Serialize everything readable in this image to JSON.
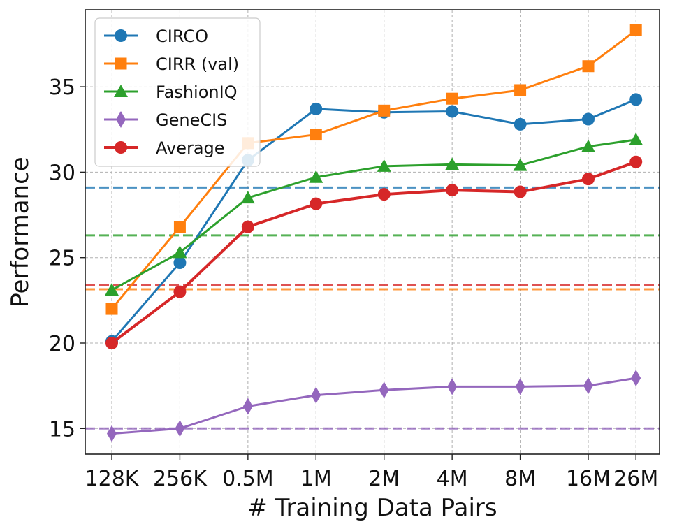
{
  "chart_data": {
    "type": "line",
    "title": "",
    "xlabel": "# Training Data Pairs",
    "ylabel": "Performance",
    "categories": [
      "128K",
      "256K",
      "0.5M",
      "1M",
      "2M",
      "4M",
      "8M",
      "16M",
      "26M"
    ],
    "x_positions": [
      0,
      1,
      2,
      3,
      4,
      5,
      6,
      7,
      7.7
    ],
    "ylim": [
      13.5,
      39.5
    ],
    "yticks": [
      15,
      20,
      25,
      30,
      35
    ],
    "grid": true,
    "legend_position": "top-left",
    "series": [
      {
        "name": "CIRCO",
        "color": "#1f77b4",
        "marker": "circle",
        "values": [
          20.1,
          24.7,
          30.7,
          33.7,
          33.5,
          33.55,
          32.8,
          33.1,
          34.25
        ]
      },
      {
        "name": "CIRR (val)",
        "color": "#ff7f0e",
        "marker": "square",
        "values": [
          22.0,
          26.8,
          31.7,
          32.2,
          33.6,
          34.3,
          34.8,
          36.2,
          38.3
        ]
      },
      {
        "name": "FashionIQ",
        "color": "#2ca02c",
        "marker": "triangle",
        "values": [
          23.1,
          25.3,
          28.5,
          29.7,
          30.35,
          30.45,
          30.4,
          31.5,
          31.9
        ]
      },
      {
        "name": "GeneCIS",
        "color": "#9467bd",
        "marker": "diamond",
        "values": [
          14.7,
          15.0,
          16.3,
          16.95,
          17.25,
          17.45,
          17.45,
          17.5,
          17.95
        ]
      },
      {
        "name": "Average",
        "color": "#d62728",
        "marker": "circle",
        "values": [
          20.0,
          23.0,
          26.8,
          28.15,
          28.7,
          28.95,
          28.85,
          29.6,
          30.6
        ]
      }
    ],
    "baselines": [
      {
        "series": "CIRCO",
        "color": "#1f77b4",
        "value": 29.1
      },
      {
        "series": "FashionIQ",
        "color": "#2ca02c",
        "value": 26.3
      },
      {
        "series": "Average",
        "color": "#d62728",
        "value": 23.4
      },
      {
        "series": "CIRR (val)",
        "color": "#ff7f0e",
        "value": 23.15
      },
      {
        "series": "GeneCIS",
        "color": "#9467bd",
        "value": 15.0
      }
    ]
  }
}
